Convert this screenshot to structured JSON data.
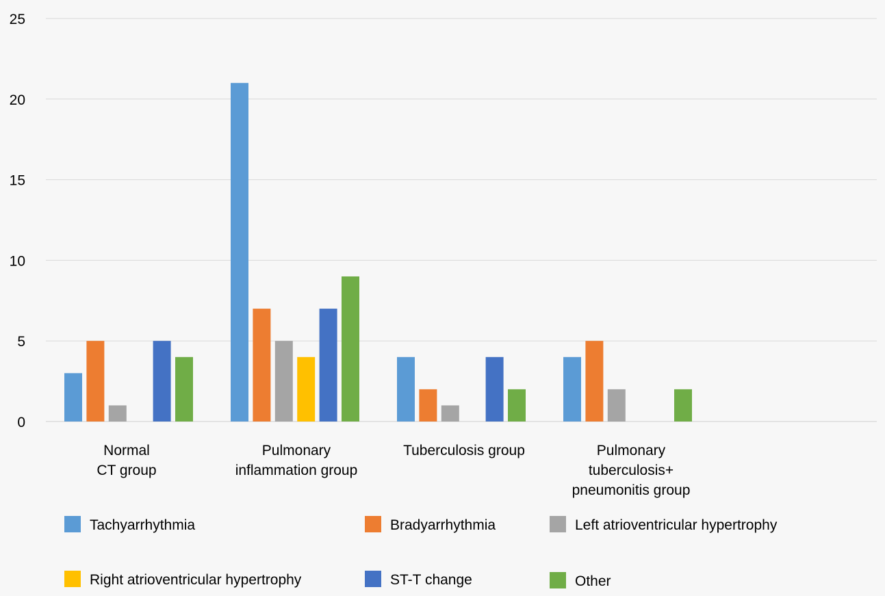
{
  "chart_data": {
    "type": "bar",
    "title": "",
    "xlabel": "",
    "ylabel": "",
    "ylim": [
      0,
      25
    ],
    "yticks": [
      0,
      5,
      10,
      15,
      20,
      25
    ],
    "grid": true,
    "legend_position": "bottom",
    "categories": [
      [
        "Normal",
        "CT group"
      ],
      [
        "Pulmonary",
        "inflammation group"
      ],
      [
        "Tuberculosis group"
      ],
      [
        "Pulmonary",
        "tuberculosis+",
        "pneumonitis group"
      ]
    ],
    "series": [
      {
        "name": "Tachyarrhythmia",
        "color": "#5b9bd5",
        "values": [
          3,
          21,
          4,
          4
        ]
      },
      {
        "name": "Bradyarrhythmia",
        "color": "#ed7d31",
        "values": [
          5,
          7,
          2,
          5
        ]
      },
      {
        "name": "Left atrioventricular hypertrophy",
        "color": "#a5a5a5",
        "values": [
          1,
          5,
          1,
          2
        ]
      },
      {
        "name": "Right atrioventricular hypertrophy",
        "color": "#ffc000",
        "values": [
          0,
          4,
          0,
          0
        ]
      },
      {
        "name": "ST-T change",
        "color": "#4472c4",
        "values": [
          5,
          7,
          4,
          0
        ]
      },
      {
        "name": "Other",
        "color": "#70ad47",
        "values": [
          4,
          9,
          2,
          2
        ]
      }
    ]
  }
}
